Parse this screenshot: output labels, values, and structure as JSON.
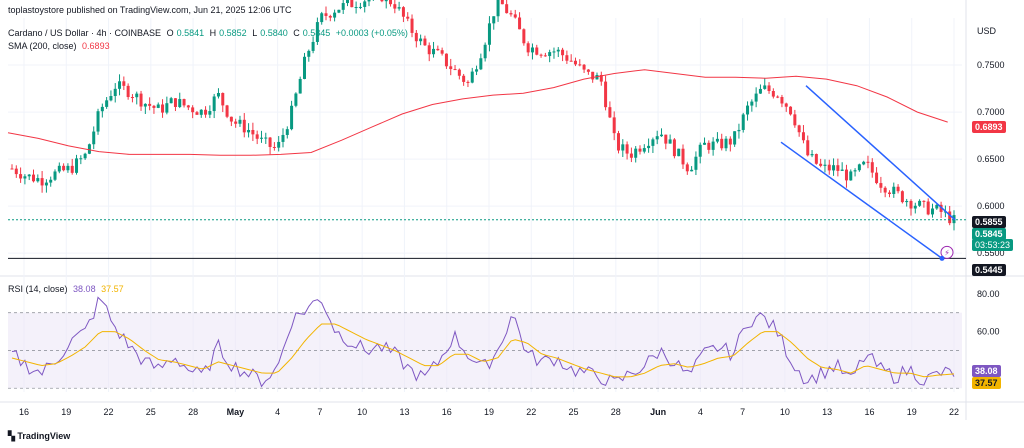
{
  "header": {
    "attribution": "toplastoystore published on TradingView.com, Jun 21, 2025 12:06 UTC",
    "symbol": "Cardano / US Dollar · 4h · COINBASE",
    "ohlc": {
      "o_label": "O",
      "o": "0.5841",
      "h_label": "H",
      "h": "0.5852",
      "l_label": "L",
      "l": "0.5840",
      "c_label": "C",
      "c": "0.5845",
      "chg": "+0.0003 (+0.05%)"
    },
    "sma_label": "SMA (200, close)",
    "sma_value": "0.6893",
    "rsi_label": "RSI (14, close)",
    "rsi_value": "38.08",
    "rsi_ma_value": "37.57",
    "currency": "USD",
    "brand": "TradingView"
  },
  "tags": {
    "sma": "0.6893",
    "level_top": "0.5855",
    "price": "0.5845",
    "countdown": "03:53:23",
    "level_bottom": "0.5445",
    "rsi": "38.08",
    "rsi_ma": "37.57"
  },
  "colors": {
    "up": "#089981",
    "down": "#f23645",
    "sma": "#f23645",
    "channel": "#2962ff",
    "rsi": "#7e57c2",
    "rsi_ma": "#f2b400",
    "rsi_band": "#ede7f6"
  },
  "chart_data": [
    {
      "type": "candlestick",
      "title": "Cardano / US Dollar · 4h · COINBASE",
      "ylabel": "USD",
      "yticks": [
        0.75,
        0.7,
        0.65,
        0.6,
        0.55
      ],
      "ylim": [
        0.53,
        0.8
      ],
      "xticks": [
        "16",
        "19",
        "22",
        "25",
        "28",
        "May",
        "4",
        "7",
        "10",
        "13",
        "16",
        "19",
        "22",
        "25",
        "28",
        "Jun",
        "4",
        "7",
        "10",
        "13",
        "16",
        "19",
        "22"
      ],
      "close_series": [
        0.64,
        0.632,
        0.628,
        0.635,
        0.64,
        0.654,
        0.702,
        0.728,
        0.722,
        0.71,
        0.702,
        0.712,
        0.705,
        0.7,
        0.718,
        0.69,
        0.682,
        0.668,
        0.66,
        0.7,
        0.76,
        0.8,
        0.81,
        0.815,
        0.82,
        0.825,
        0.815,
        0.79,
        0.77,
        0.76,
        0.745,
        0.73,
        0.77,
        0.82,
        0.8,
        0.77,
        0.765,
        0.765,
        0.755,
        0.74,
        0.735,
        0.665,
        0.655,
        0.668,
        0.68,
        0.66,
        0.64,
        0.665,
        0.665,
        0.67,
        0.705,
        0.725,
        0.72,
        0.7,
        0.655,
        0.64,
        0.64,
        0.63,
        0.645,
        0.625,
        0.614,
        0.605,
        0.598,
        0.595,
        0.5845
      ],
      "sma200_series": [
        0.678,
        0.672,
        0.664,
        0.658,
        0.655,
        0.655,
        0.655,
        0.654,
        0.654,
        0.655,
        0.657,
        0.67,
        0.684,
        0.698,
        0.708,
        0.714,
        0.718,
        0.72,
        0.726,
        0.735,
        0.741,
        0.745,
        0.741,
        0.737,
        0.737,
        0.736,
        0.738,
        0.735,
        0.728,
        0.716,
        0.7,
        0.6893
      ],
      "horizontal_levels": [
        0.5855,
        0.5445
      ],
      "channel": {
        "upper": [
          [
            0.728,
            "Jun 11"
          ],
          [
            0.5855,
            "Jun 21"
          ]
        ],
        "lower": [
          [
            0.668,
            "Jun 9"
          ],
          [
            0.5445,
            "Jun 20"
          ]
        ]
      }
    },
    {
      "type": "line",
      "title": "RSI (14, close)",
      "yticks": [
        80.0,
        60.0,
        40.0
      ],
      "ylim": [
        28,
        82
      ],
      "band": [
        30,
        70
      ],
      "series": [
        {
          "name": "RSI",
          "values": [
            48,
            42,
            38,
            45,
            55,
            60,
            78,
            62,
            52,
            44,
            40,
            47,
            40,
            36,
            52,
            42,
            38,
            34,
            40,
            66,
            72,
            78,
            60,
            55,
            50,
            52,
            48,
            40,
            35,
            44,
            58,
            48,
            40,
            50,
            70,
            48,
            44,
            46,
            40,
            38,
            36,
            32,
            38,
            42,
            50,
            44,
            36,
            48,
            52,
            48,
            66,
            68,
            60,
            44,
            34,
            38,
            42,
            34,
            48,
            40,
            36,
            40,
            34,
            38,
            38.08
          ]
        },
        {
          "name": "RSI MA",
          "values": [
            46,
            44,
            42,
            43,
            47,
            52,
            60,
            60,
            56,
            50,
            45,
            44,
            42,
            40,
            44,
            42,
            40,
            38,
            38,
            46,
            56,
            64,
            64,
            60,
            56,
            53,
            50,
            46,
            42,
            42,
            48,
            48,
            44,
            46,
            56,
            54,
            48,
            46,
            43,
            40,
            38,
            36,
            36,
            38,
            42,
            43,
            41,
            43,
            46,
            47,
            54,
            60,
            60,
            54,
            46,
            41,
            40,
            38,
            42,
            40,
            38,
            38,
            36,
            37,
            37.57
          ]
        }
      ]
    }
  ]
}
